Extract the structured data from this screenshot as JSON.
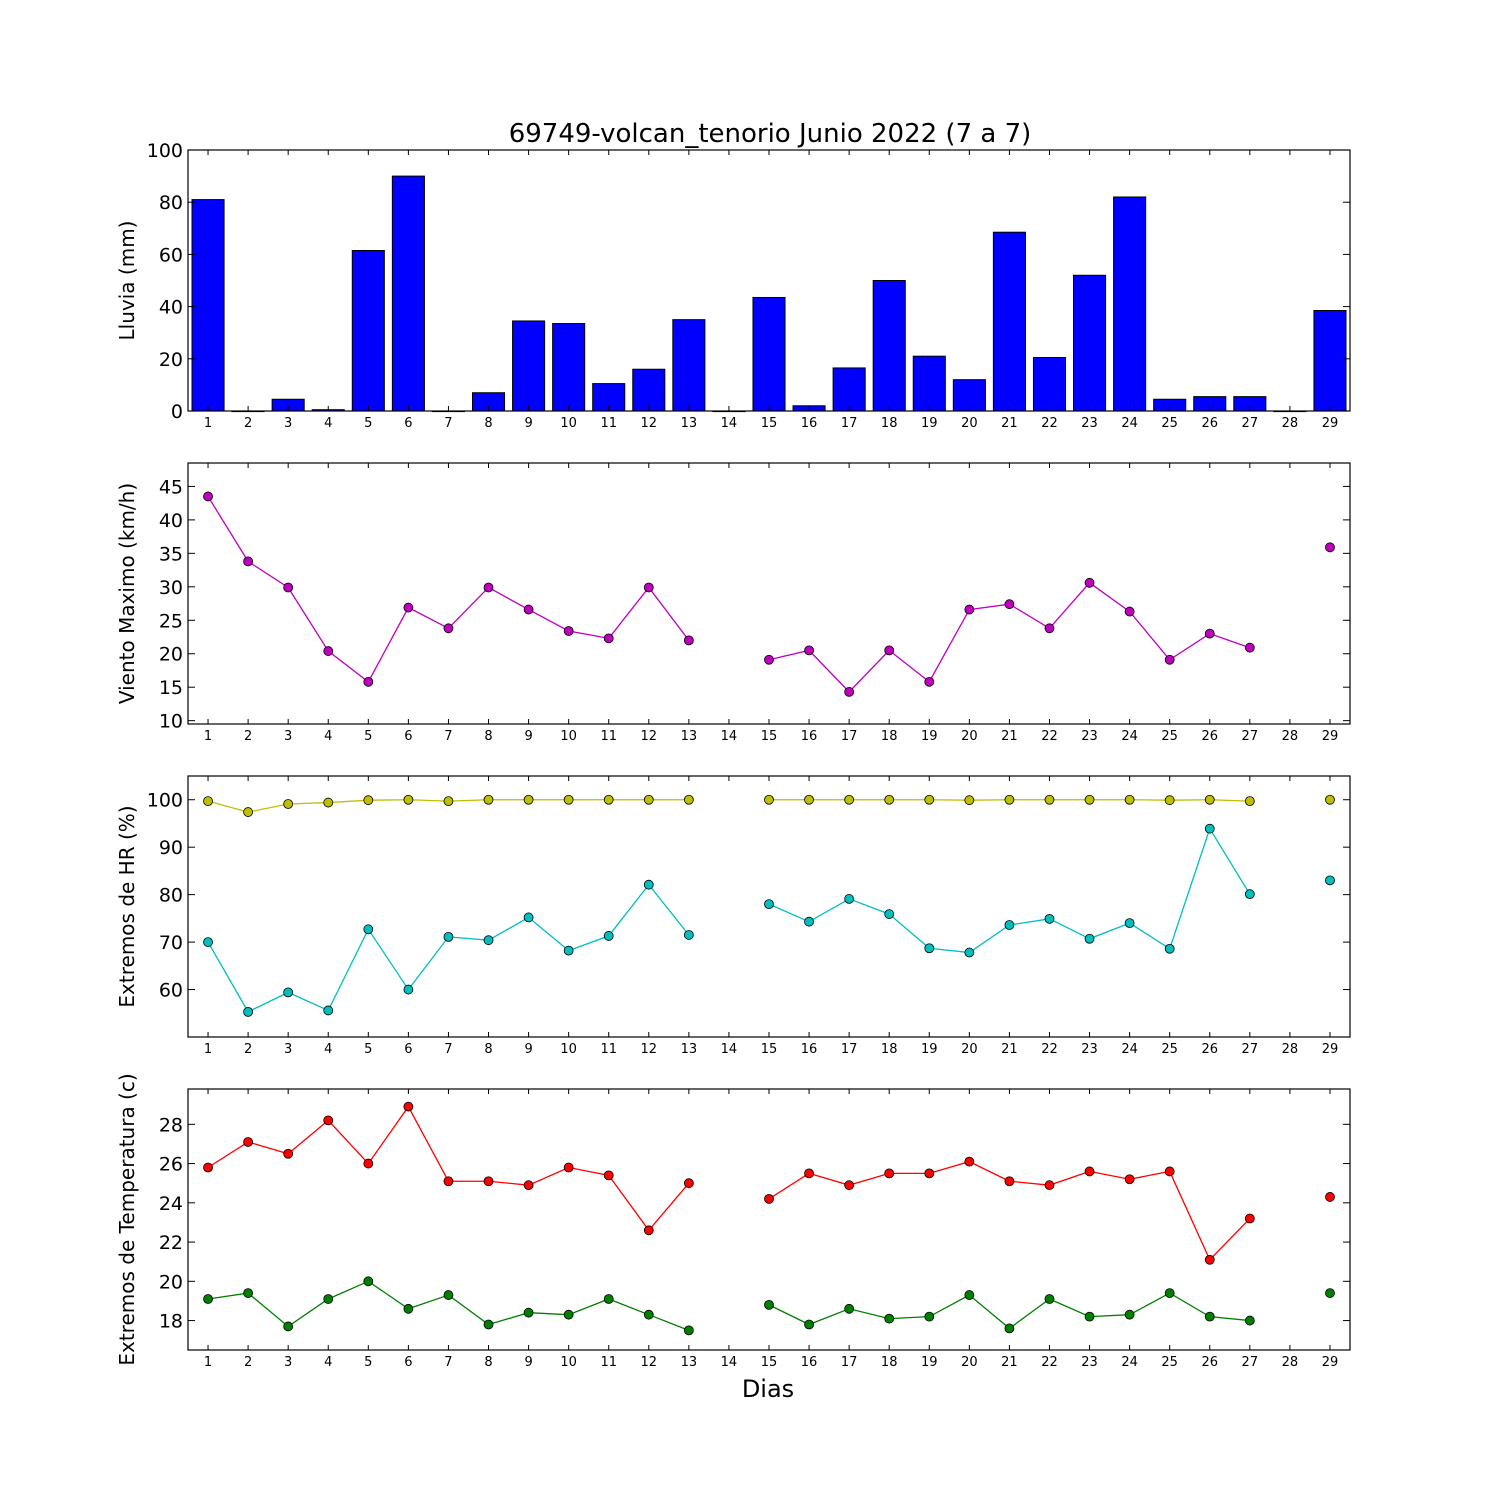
{
  "title": "69749-volcan_tenorio Junio 2022  (7 a 7)",
  "xlabel": "Dias",
  "colors": {
    "rain_bar": "#0000ff",
    "wind": "#bf00bf",
    "hr_max": "#bfbf00",
    "hr_min": "#00bfbf",
    "temp_max": "#ff0000",
    "temp_min": "#008000"
  },
  "chart_data": [
    {
      "type": "bar",
      "ylabel": "Lluvia (mm)",
      "ylim": [
        0,
        100
      ],
      "yticks": [
        0,
        20,
        40,
        60,
        80,
        100
      ],
      "xlim": [
        0.5,
        29.5
      ],
      "days": [
        1,
        2,
        3,
        4,
        5,
        6,
        7,
        8,
        9,
        10,
        11,
        12,
        13,
        14,
        15,
        16,
        17,
        18,
        19,
        20,
        21,
        22,
        23,
        24,
        25,
        26,
        27,
        28,
        29
      ],
      "values": [
        81,
        0,
        4.5,
        0.5,
        61.5,
        90,
        0,
        7,
        34.5,
        33.5,
        10.5,
        16,
        35,
        0,
        43.5,
        2,
        16.5,
        50,
        21,
        12,
        68.5,
        20.5,
        52,
        82,
        4.5,
        5.5,
        5.5,
        0,
        38.5
      ]
    },
    {
      "type": "line",
      "ylabel": "Viento Maximo (km/h)",
      "ylim": [
        9.5,
        48.5
      ],
      "yticks": [
        10,
        15,
        20,
        25,
        30,
        35,
        40,
        45
      ],
      "xlim": [
        0.5,
        29.5
      ],
      "days": [
        1,
        2,
        3,
        4,
        5,
        6,
        7,
        8,
        9,
        10,
        11,
        12,
        13,
        14,
        15,
        16,
        17,
        18,
        19,
        20,
        21,
        22,
        23,
        24,
        25,
        26,
        27,
        28,
        29
      ],
      "series": [
        {
          "color": "#bf00bf",
          "values": [
            43.5,
            33.8,
            29.9,
            20.4,
            15.8,
            26.9,
            23.8,
            29.9,
            26.6,
            23.4,
            22.3,
            29.9,
            22,
            null,
            19.1,
            20.5,
            14.3,
            20.5,
            15.8,
            26.6,
            27.4,
            23.8,
            30.6,
            26.3,
            19.1,
            23,
            20.9,
            null,
            35.9
          ]
        }
      ]
    },
    {
      "type": "line",
      "ylabel": "Extremos de HR (%)",
      "ylim": [
        50,
        105
      ],
      "yticks": [
        60,
        70,
        80,
        90,
        100
      ],
      "xlim": [
        0.5,
        29.5
      ],
      "days": [
        1,
        2,
        3,
        4,
        5,
        6,
        7,
        8,
        9,
        10,
        11,
        12,
        13,
        14,
        15,
        16,
        17,
        18,
        19,
        20,
        21,
        22,
        23,
        24,
        25,
        26,
        27,
        28,
        29
      ],
      "series": [
        {
          "color": "#bfbf00",
          "values": [
            99.7,
            97.4,
            99.1,
            99.4,
            99.9,
            100,
            99.7,
            100,
            100,
            100,
            100,
            100,
            100,
            null,
            100,
            100,
            100,
            100,
            100,
            99.9,
            100,
            100,
            100,
            100,
            99.9,
            100,
            99.7,
            null,
            100
          ]
        },
        {
          "color": "#00bfbf",
          "values": [
            70,
            55.3,
            59.4,
            55.6,
            72.7,
            60,
            71.1,
            70.4,
            75.2,
            68.2,
            71.3,
            82.1,
            71.5,
            null,
            78,
            74.3,
            79.1,
            75.9,
            68.7,
            67.8,
            73.6,
            74.9,
            70.7,
            74,
            68.6,
            93.9,
            80.1,
            null,
            83
          ]
        }
      ]
    },
    {
      "type": "line",
      "ylabel": "Extremos de Temperatura (c)",
      "ylim": [
        16.5,
        29.8
      ],
      "yticks": [
        18,
        20,
        22,
        24,
        26,
        28
      ],
      "xlim": [
        0.5,
        29.5
      ],
      "days": [
        1,
        2,
        3,
        4,
        5,
        6,
        7,
        8,
        9,
        10,
        11,
        12,
        13,
        14,
        15,
        16,
        17,
        18,
        19,
        20,
        21,
        22,
        23,
        24,
        25,
        26,
        27,
        28,
        29
      ],
      "series": [
        {
          "color": "#ff0000",
          "values": [
            25.8,
            27.1,
            26.5,
            28.2,
            26,
            28.9,
            25.1,
            25.1,
            24.9,
            25.8,
            25.4,
            22.6,
            25,
            null,
            24.2,
            25.5,
            24.9,
            25.5,
            25.5,
            26.1,
            25.1,
            24.9,
            25.6,
            25.2,
            25.6,
            21.1,
            23.2,
            null,
            24.3
          ]
        },
        {
          "color": "#008000",
          "values": [
            19.1,
            19.4,
            17.7,
            19.1,
            20,
            18.6,
            19.3,
            17.8,
            18.4,
            18.3,
            19.1,
            18.3,
            17.5,
            null,
            18.8,
            17.8,
            18.6,
            18.1,
            18.2,
            19.3,
            17.6,
            19.1,
            18.2,
            18.3,
            19.4,
            18.2,
            18,
            null,
            19.4
          ]
        }
      ]
    }
  ]
}
